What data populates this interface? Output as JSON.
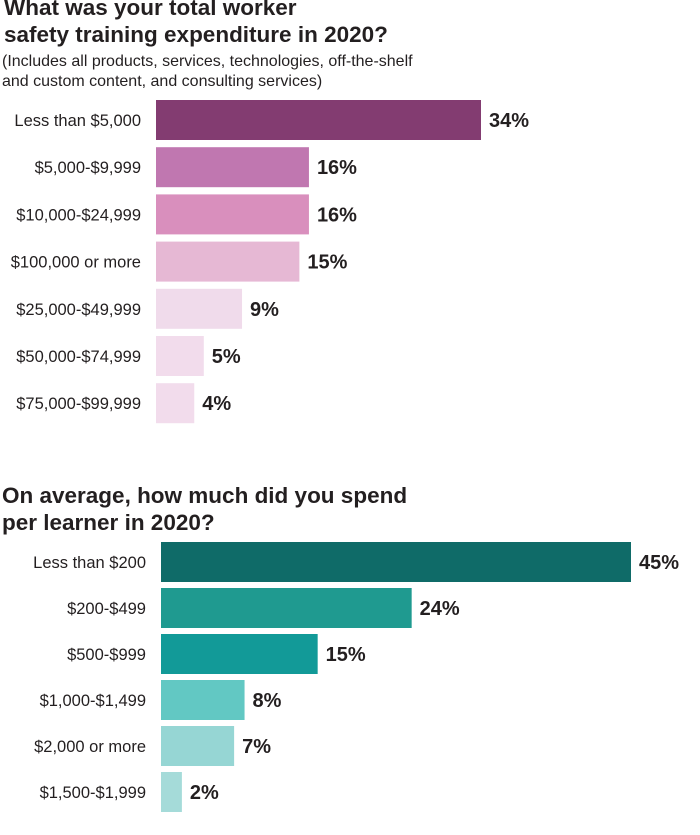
{
  "chart_data": [
    {
      "type": "bar",
      "orientation": "horizontal",
      "title": "What was your total worker\nsafety training expenditure in 2020?",
      "subtitle": "(Includes all products, services, technologies, off-the-shelf\nand custom content, and consulting services)",
      "categories": [
        "Less than $5,000",
        "$5,000-$9,999",
        "$10,000-$24,999",
        "$100,000 or more",
        "$25,000-$49,999",
        "$50,000-$74,999",
        "$75,000-$99,999"
      ],
      "values": [
        34,
        16,
        16,
        15,
        9,
        5,
        4
      ],
      "value_labels": [
        "34%",
        "16%",
        "16%",
        "15%",
        "9%",
        "5%",
        "4%"
      ],
      "colors": [
        "#833c71",
        "#c077b0",
        "#d98fbd",
        "#e6b8d4",
        "#f0dbeb",
        "#f2dcec",
        "#f2dcec"
      ],
      "xlabel": "",
      "ylabel": ""
    },
    {
      "type": "bar",
      "orientation": "horizontal",
      "title": "On average, how much did you spend\nper learner in 2020?",
      "categories": [
        "Less than $200",
        "$200-$499",
        "$500-$999",
        "$1,000-$1,499",
        "$2,000 or more",
        "$1,500-$1,999"
      ],
      "values": [
        45,
        24,
        15,
        8,
        7,
        2
      ],
      "value_labels": [
        "45%",
        "24%",
        "15%",
        "8%",
        "7%",
        "2%"
      ],
      "colors": [
        "#0f6b68",
        "#1f9a90",
        "#129a98",
        "#62c8c3",
        "#96d6d4",
        "#a5dbd9"
      ],
      "xlabel": "",
      "ylabel": ""
    }
  ]
}
